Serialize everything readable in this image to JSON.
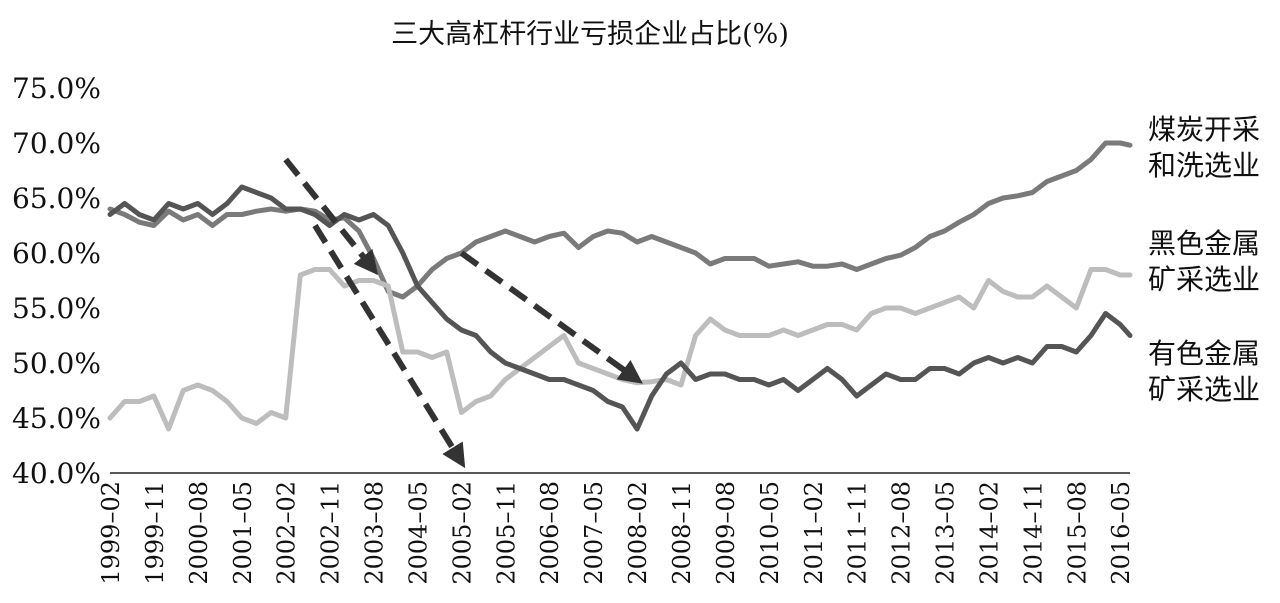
{
  "chart_data": {
    "type": "line",
    "title": "三大高杠杆行业亏损企业占比(%)",
    "xlabel": "",
    "ylabel": "",
    "ylim": [
      40,
      75
    ],
    "yticks": [
      "40.0%",
      "45.0%",
      "50.0%",
      "55.0%",
      "60.0%",
      "65.0%",
      "70.0%",
      "75.0%"
    ],
    "xticks": [
      "1999–02",
      "1999–11",
      "2000–08",
      "2001–05",
      "2002–02",
      "2002–11",
      "2003–08",
      "2004–05",
      "2005–02",
      "2005–11",
      "2006–08",
      "2007–05",
      "2008–02",
      "2008–11",
      "2009–08",
      "2010–05",
      "2011–02",
      "2011–11",
      "2012–08",
      "2013–05",
      "2014–02",
      "2014–11",
      "2015–08",
      "2016–05"
    ],
    "grid": false,
    "legend_position": "right",
    "series": [
      {
        "name": "煤炭开采和洗选业",
        "color": "#7a7a7a",
        "points": [
          [
            "1999–02",
            64.0
          ],
          [
            "1999–05",
            63.5
          ],
          [
            "1999–08",
            62.8
          ],
          [
            "1999–11",
            62.5
          ],
          [
            "2000–02",
            63.8
          ],
          [
            "2000–05",
            63.0
          ],
          [
            "2000–08",
            63.5
          ],
          [
            "2000–11",
            62.5
          ],
          [
            "2001–02",
            63.5
          ],
          [
            "2001–05",
            63.5
          ],
          [
            "2001–08",
            63.8
          ],
          [
            "2001–11",
            64.0
          ],
          [
            "2002–02",
            63.8
          ],
          [
            "2002–05",
            64.0
          ],
          [
            "2002–08",
            63.8
          ],
          [
            "2002–11",
            63.0
          ],
          [
            "2003–02",
            63.2
          ],
          [
            "2003–05",
            62.0
          ],
          [
            "2003–08",
            59.5
          ],
          [
            "2003–11",
            56.5
          ],
          [
            "2004–02",
            56.0
          ],
          [
            "2004–05",
            57.0
          ],
          [
            "2004–08",
            58.5
          ],
          [
            "2004–11",
            59.5
          ],
          [
            "2005–02",
            60.0
          ],
          [
            "2005–05",
            61.0
          ],
          [
            "2005–08",
            61.5
          ],
          [
            "2005–11",
            62.0
          ],
          [
            "2006–02",
            61.5
          ],
          [
            "2006–05",
            61.0
          ],
          [
            "2006–08",
            61.5
          ],
          [
            "2006–11",
            61.8
          ],
          [
            "2007–02",
            60.5
          ],
          [
            "2007–05",
            61.5
          ],
          [
            "2007–08",
            62.0
          ],
          [
            "2007–11",
            61.8
          ],
          [
            "2008–02",
            61.0
          ],
          [
            "2008–05",
            61.5
          ],
          [
            "2008–08",
            61.0
          ],
          [
            "2008–11",
            60.5
          ],
          [
            "2009–02",
            60.0
          ],
          [
            "2009–05",
            59.0
          ],
          [
            "2009–08",
            59.5
          ],
          [
            "2009–11",
            59.5
          ],
          [
            "2010–02",
            59.5
          ],
          [
            "2010–05",
            58.8
          ],
          [
            "2010–08",
            59.0
          ],
          [
            "2010–11",
            59.2
          ],
          [
            "2011–02",
            58.8
          ],
          [
            "2011–05",
            58.8
          ],
          [
            "2011–08",
            59.0
          ],
          [
            "2011–11",
            58.5
          ],
          [
            "2012–02",
            59.0
          ],
          [
            "2012–05",
            59.5
          ],
          [
            "2012–08",
            59.8
          ],
          [
            "2012–11",
            60.5
          ],
          [
            "2013–02",
            61.5
          ],
          [
            "2013–05",
            62.0
          ],
          [
            "2013–08",
            62.8
          ],
          [
            "2013–11",
            63.5
          ],
          [
            "2014–02",
            64.5
          ],
          [
            "2014–05",
            65.0
          ],
          [
            "2014–08",
            65.2
          ],
          [
            "2014–11",
            65.5
          ],
          [
            "2015–02",
            66.5
          ],
          [
            "2015–05",
            67.0
          ],
          [
            "2015–08",
            67.5
          ],
          [
            "2015–11",
            68.5
          ],
          [
            "2016–02",
            70.0
          ],
          [
            "2016–05",
            70.0
          ],
          [
            "2016–07",
            69.8
          ]
        ]
      },
      {
        "name": "黑色金属矿采选业",
        "color": "#bdbdbd",
        "points": [
          [
            "1999–02",
            45.0
          ],
          [
            "1999–05",
            46.5
          ],
          [
            "1999–08",
            46.5
          ],
          [
            "1999–11",
            47.0
          ],
          [
            "2000–02",
            44.0
          ],
          [
            "2000–05",
            47.5
          ],
          [
            "2000–08",
            48.0
          ],
          [
            "2000–11",
            47.5
          ],
          [
            "2001–02",
            46.5
          ],
          [
            "2001–05",
            45.0
          ],
          [
            "2001–08",
            44.5
          ],
          [
            "2001–11",
            45.5
          ],
          [
            "2002–02",
            45.0
          ],
          [
            "2002–05",
            58.0
          ],
          [
            "2002–08",
            58.5
          ],
          [
            "2002–11",
            58.5
          ],
          [
            "2003–02",
            57.0
          ],
          [
            "2003–05",
            57.5
          ],
          [
            "2003–08",
            57.5
          ],
          [
            "2003–11",
            57.0
          ],
          [
            "2004–02",
            51.0
          ],
          [
            "2004–05",
            51.0
          ],
          [
            "2004–08",
            50.5
          ],
          [
            "2004–11",
            51.0
          ],
          [
            "2005–02",
            45.5
          ],
          [
            "2005–05",
            46.5
          ],
          [
            "2005–08",
            47.0
          ],
          [
            "2005–11",
            48.5
          ],
          [
            "2006–02",
            49.5
          ],
          [
            "2006–05",
            50.5
          ],
          [
            "2006–08",
            51.5
          ],
          [
            "2006–11",
            52.5
          ],
          [
            "2007–02",
            50.0
          ],
          [
            "2007–05",
            49.5
          ],
          [
            "2007–08",
            49.0
          ],
          [
            "2007–11",
            48.5
          ],
          [
            "2008–02",
            48.2
          ],
          [
            "2008–05",
            48.3
          ],
          [
            "2008–08",
            48.5
          ],
          [
            "2008–11",
            48.0
          ],
          [
            "2009–02",
            52.5
          ],
          [
            "2009–05",
            54.0
          ],
          [
            "2009–08",
            53.0
          ],
          [
            "2009–11",
            52.5
          ],
          [
            "2010–02",
            52.5
          ],
          [
            "2010–05",
            52.5
          ],
          [
            "2010–08",
            53.0
          ],
          [
            "2010–11",
            52.5
          ],
          [
            "2011–02",
            53.0
          ],
          [
            "2011–05",
            53.5
          ],
          [
            "2011–08",
            53.5
          ],
          [
            "2011–11",
            53.0
          ],
          [
            "2012–02",
            54.5
          ],
          [
            "2012–05",
            55.0
          ],
          [
            "2012–08",
            55.0
          ],
          [
            "2012–11",
            54.5
          ],
          [
            "2013–02",
            55.0
          ],
          [
            "2013–05",
            55.5
          ],
          [
            "2013–08",
            56.0
          ],
          [
            "2013–11",
            55.0
          ],
          [
            "2014–02",
            57.5
          ],
          [
            "2014–05",
            56.5
          ],
          [
            "2014–08",
            56.0
          ],
          [
            "2014–11",
            56.0
          ],
          [
            "2015–02",
            57.0
          ],
          [
            "2015–05",
            56.0
          ],
          [
            "2015–08",
            55.0
          ],
          [
            "2015–11",
            58.5
          ],
          [
            "2016–02",
            58.5
          ],
          [
            "2016–05",
            58.0
          ],
          [
            "2016–07",
            58.0
          ]
        ]
      },
      {
        "name": "有色金属矿采选业",
        "color": "#555555",
        "points": [
          [
            "1999–02",
            63.5
          ],
          [
            "1999–05",
            64.5
          ],
          [
            "1999–08",
            63.5
          ],
          [
            "1999–11",
            63.0
          ],
          [
            "2000–02",
            64.5
          ],
          [
            "2000–05",
            64.0
          ],
          [
            "2000–08",
            64.5
          ],
          [
            "2000–11",
            63.5
          ],
          [
            "2001–02",
            64.5
          ],
          [
            "2001–05",
            66.0
          ],
          [
            "2001–08",
            65.5
          ],
          [
            "2001–11",
            65.0
          ],
          [
            "2002–02",
            64.0
          ],
          [
            "2002–05",
            64.0
          ],
          [
            "2002–08",
            63.5
          ],
          [
            "2002–11",
            62.5
          ],
          [
            "2003–02",
            63.5
          ],
          [
            "2003–05",
            63.0
          ],
          [
            "2003–08",
            63.5
          ],
          [
            "2003–11",
            62.5
          ],
          [
            "2004–02",
            60.0
          ],
          [
            "2004–05",
            57.0
          ],
          [
            "2004–08",
            55.5
          ],
          [
            "2004–11",
            54.0
          ],
          [
            "2005–02",
            53.0
          ],
          [
            "2005–05",
            52.5
          ],
          [
            "2005–08",
            51.0
          ],
          [
            "2005–11",
            50.0
          ],
          [
            "2006–02",
            49.5
          ],
          [
            "2006–05",
            49.0
          ],
          [
            "2006–08",
            48.5
          ],
          [
            "2006–11",
            48.5
          ],
          [
            "2007–02",
            48.0
          ],
          [
            "2007–05",
            47.5
          ],
          [
            "2007–08",
            46.5
          ],
          [
            "2007–11",
            46.0
          ],
          [
            "2008–02",
            44.0
          ],
          [
            "2008–05",
            47.0
          ],
          [
            "2008–08",
            49.0
          ],
          [
            "2008–11",
            50.0
          ],
          [
            "2009–02",
            48.5
          ],
          [
            "2009–05",
            49.0
          ],
          [
            "2009–08",
            49.0
          ],
          [
            "2009–11",
            48.5
          ],
          [
            "2010–02",
            48.5
          ],
          [
            "2010–05",
            48.0
          ],
          [
            "2010–08",
            48.5
          ],
          [
            "2010–11",
            47.5
          ],
          [
            "2011–02",
            48.5
          ],
          [
            "2011–05",
            49.5
          ],
          [
            "2011–08",
            48.5
          ],
          [
            "2011–11",
            47.0
          ],
          [
            "2012–02",
            48.0
          ],
          [
            "2012–05",
            49.0
          ],
          [
            "2012–08",
            48.5
          ],
          [
            "2012–11",
            48.5
          ],
          [
            "2013–02",
            49.5
          ],
          [
            "2013–05",
            49.5
          ],
          [
            "2013–08",
            49.0
          ],
          [
            "2013–11",
            50.0
          ],
          [
            "2014–02",
            50.5
          ],
          [
            "2014–05",
            50.0
          ],
          [
            "2014–08",
            50.5
          ],
          [
            "2014–11",
            50.0
          ],
          [
            "2015–02",
            51.5
          ],
          [
            "2015–05",
            51.5
          ],
          [
            "2015–08",
            51.0
          ],
          [
            "2015–11",
            52.5
          ],
          [
            "2016–02",
            54.5
          ],
          [
            "2016–05",
            53.5
          ],
          [
            "2016–07",
            52.5
          ]
        ]
      }
    ],
    "annotations": [
      {
        "type": "dashed-arrow",
        "from": [
          "2002–02",
          68.5
        ],
        "to": [
          "2003–08",
          58.5
        ]
      },
      {
        "type": "dashed-arrow",
        "from": [
          "2002–08",
          62.5
        ],
        "to": [
          "2005–02",
          41.0
        ]
      },
      {
        "type": "dashed-arrow",
        "from": [
          "2005–02",
          60.0
        ],
        "to": [
          "2008–02",
          48.5
        ]
      }
    ]
  }
}
